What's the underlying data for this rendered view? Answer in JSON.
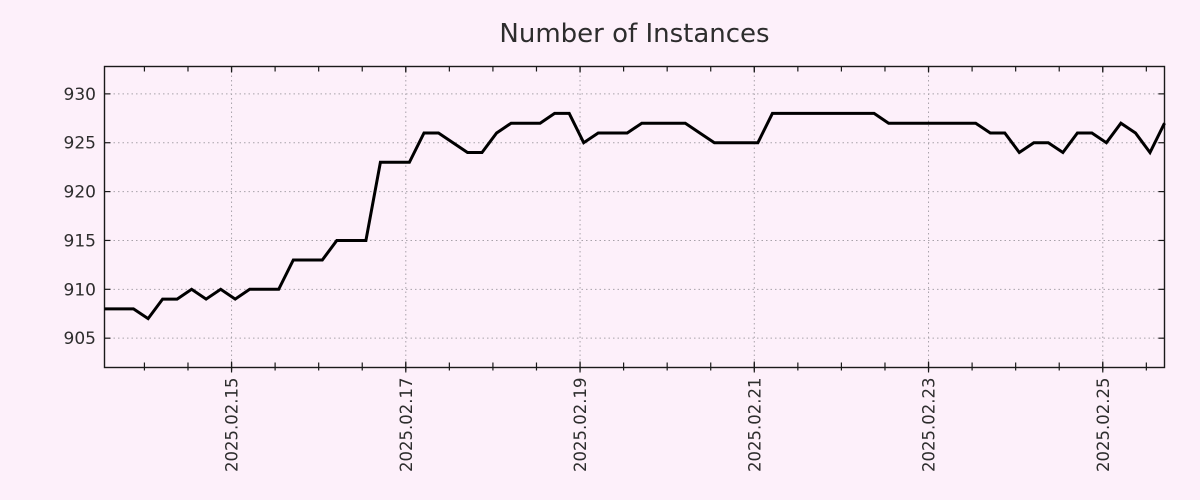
{
  "chart_data": {
    "type": "line",
    "title": "Number of Instances",
    "x_axis": {
      "unit": "date",
      "tick_labels": [
        "2025.02.15",
        "2025.02.17",
        "2025.02.19",
        "2025.02.21",
        "2025.02.23",
        "2025.02.25"
      ],
      "first_major_tick_offset_days": 1.4583,
      "major_tick_interval_days": 2,
      "first_minor_tick_offset_days": 0.4583,
      "minor_tick_interval_days": 0.5,
      "span_days": 12.1667,
      "grid": "dotted-at-major-ticks"
    },
    "y_axis": {
      "range": [
        902,
        932.8
      ],
      "ticks": [
        905,
        910,
        915,
        920,
        925,
        930
      ],
      "grid": "dotted-at-ticks"
    },
    "series": [
      {
        "name": "instances",
        "color": "#000000",
        "start_estimate": "2025-02-13 13:00",
        "sample_interval_hours": 4,
        "values": [
          908,
          908,
          908,
          907,
          909,
          909,
          910,
          909,
          910,
          909,
          910,
          910,
          910,
          913,
          913,
          913,
          915,
          915,
          915,
          923,
          923,
          923,
          926,
          926,
          925,
          924,
          924,
          926,
          927,
          927,
          927,
          928,
          928,
          925,
          926,
          926,
          926,
          927,
          927,
          927,
          927,
          926,
          925,
          925,
          925,
          925,
          928,
          928,
          928,
          928,
          928,
          928,
          928,
          928,
          927,
          927,
          927,
          927,
          927,
          927,
          927,
          926,
          926,
          924,
          925,
          925,
          924,
          926,
          926,
          925,
          927,
          926,
          924,
          927
        ]
      }
    ],
    "legend": "none",
    "colors": {
      "background": "#fdf0fa",
      "line": "#000000",
      "grid": "#a8a2aa",
      "axis": "#1a1a1a",
      "text": "#2d2d2d"
    }
  }
}
